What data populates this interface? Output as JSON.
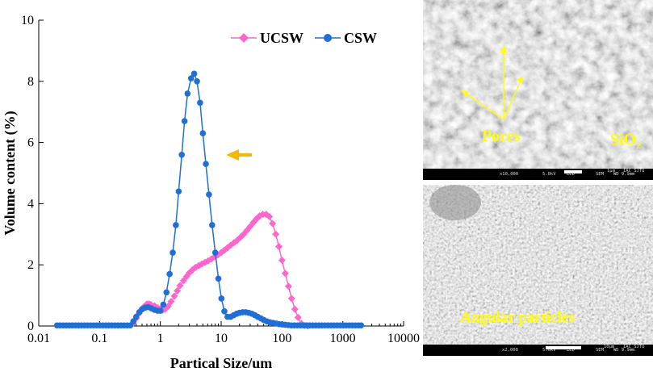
{
  "chart_data": {
    "type": "scatter",
    "title": "",
    "xlabel": "Partical Size/um",
    "ylabel": "Volume content (%)",
    "xscale": "log",
    "xlim": [
      0.01,
      10000
    ],
    "ylim": [
      0,
      10
    ],
    "xticks": [
      "0.01",
      "0.1",
      "1",
      "10",
      "100",
      "1000",
      "10000"
    ],
    "yticks": [
      "0",
      "2",
      "4",
      "6",
      "8",
      "10"
    ],
    "legend_position": "top-right",
    "annotation": "yellow arrow pointing left",
    "series": [
      {
        "name": "UCSW",
        "color": "#ff66cc",
        "marker": "diamond",
        "x": [
          0.35,
          0.4,
          0.45,
          0.5,
          0.55,
          0.6,
          0.65,
          0.7,
          0.8,
          0.9,
          1.0,
          1.1,
          1.2,
          1.35,
          1.5,
          1.7,
          1.9,
          2.1,
          2.4,
          2.7,
          3.0,
          3.4,
          3.8,
          4.3,
          4.8,
          5.4,
          6.1,
          6.9,
          7.8,
          8.8,
          10,
          11.3,
          12.7,
          14.3,
          16.2,
          18.3,
          20.7,
          23.4,
          26.4,
          29.8,
          33.7,
          38,
          43,
          48.6,
          54.9,
          62,
          70,
          79,
          89,
          100,
          113,
          128,
          144,
          163,
          184,
          208,
          235,
          266
        ],
        "y": [
          0.08,
          0.25,
          0.42,
          0.55,
          0.65,
          0.72,
          0.72,
          0.7,
          0.66,
          0.6,
          0.55,
          0.52,
          0.55,
          0.65,
          0.8,
          0.98,
          1.15,
          1.32,
          1.48,
          1.62,
          1.74,
          1.84,
          1.92,
          1.98,
          2.03,
          2.08,
          2.13,
          2.19,
          2.26,
          2.33,
          2.4,
          2.48,
          2.56,
          2.64,
          2.72,
          2.8,
          2.9,
          3.0,
          3.12,
          3.25,
          3.38,
          3.5,
          3.6,
          3.65,
          3.65,
          3.58,
          3.35,
          3.0,
          2.6,
          2.15,
          1.72,
          1.3,
          0.9,
          0.55,
          0.28,
          0.08,
          0.02,
          0.0
        ]
      },
      {
        "name": "CSW",
        "color": "#1f6fd6",
        "marker": "circle",
        "x": [
          0.02,
          0.0224,
          0.0252,
          0.0283,
          0.0317,
          0.0356,
          0.04,
          0.0449,
          0.0504,
          0.0566,
          0.0635,
          0.0713,
          0.08,
          0.0898,
          0.1008,
          0.1131,
          0.127,
          0.1426,
          0.16,
          0.1796,
          0.2016,
          0.2263,
          0.254,
          0.2851,
          0.32,
          0.36,
          0.4,
          0.45,
          0.5,
          0.56,
          0.63,
          0.71,
          0.8,
          0.9,
          1.0,
          1.12,
          1.26,
          1.42,
          1.6,
          1.8,
          2.0,
          2.25,
          2.5,
          2.8,
          3.2,
          3.6,
          4.0,
          4.5,
          5.0,
          5.6,
          6.3,
          7.1,
          8.0,
          9.0,
          10.1,
          11.3,
          12.7,
          14.3,
          16,
          18,
          20,
          22.6,
          25.4,
          28.5,
          32,
          36,
          40,
          45,
          50,
          56.6,
          63.5,
          71.3,
          80,
          89.8,
          100.8,
          113,
          127,
          142.6,
          160,
          179.6,
          201.6,
          226.3,
          254,
          285,
          320,
          359,
          403,
          453,
          508,
          570,
          640,
          718,
          806,
          905,
          1016,
          1140,
          1280,
          1437,
          1613,
          1810,
          2000
        ],
        "y": [
          0.02,
          0.02,
          0.02,
          0.02,
          0.02,
          0.02,
          0.02,
          0.02,
          0.02,
          0.02,
          0.02,
          0.02,
          0.02,
          0.02,
          0.02,
          0.02,
          0.02,
          0.02,
          0.02,
          0.02,
          0.02,
          0.02,
          0.02,
          0.02,
          0.02,
          0.15,
          0.3,
          0.45,
          0.55,
          0.6,
          0.62,
          0.58,
          0.53,
          0.5,
          0.5,
          0.7,
          1.1,
          1.7,
          2.4,
          3.3,
          4.4,
          5.6,
          6.7,
          7.6,
          8.1,
          8.25,
          8.0,
          7.3,
          6.3,
          5.3,
          4.3,
          3.3,
          2.4,
          1.55,
          0.9,
          0.48,
          0.3,
          0.3,
          0.35,
          0.4,
          0.43,
          0.45,
          0.45,
          0.43,
          0.4,
          0.35,
          0.3,
          0.25,
          0.2,
          0.15,
          0.12,
          0.1,
          0.08,
          0.06,
          0.05,
          0.04,
          0.03,
          0.02,
          0.02,
          0.02,
          0.02,
          0.02,
          0.02,
          0.02,
          0.02,
          0.02,
          0.02,
          0.02,
          0.02,
          0.02,
          0.02,
          0.02,
          0.02,
          0.02,
          0.02,
          0.02,
          0.02,
          0.02,
          0.02,
          0.02,
          0.02
        ]
      }
    ]
  },
  "sem_top": {
    "labels": {
      "pores": "Pores",
      "sio2_main": "SiO",
      "sio2_sub": "2"
    },
    "bar": {
      "scale": "1μm",
      "mag": "x10,000",
      "kv": "5.0kV",
      "det": "LED",
      "mode": "SEM",
      "wd": "WD 9.9mm",
      "lab": "IAC_SJTU"
    }
  },
  "sem_bottom": {
    "labels": {
      "angular": "Angular particles"
    },
    "bar": {
      "scale": "10μm",
      "mag": "x2,000",
      "kv": "5.0kV",
      "det": "LED",
      "mode": "SEM",
      "wd": "WD 9.9mm",
      "lab": "IAC_SJTU"
    }
  }
}
